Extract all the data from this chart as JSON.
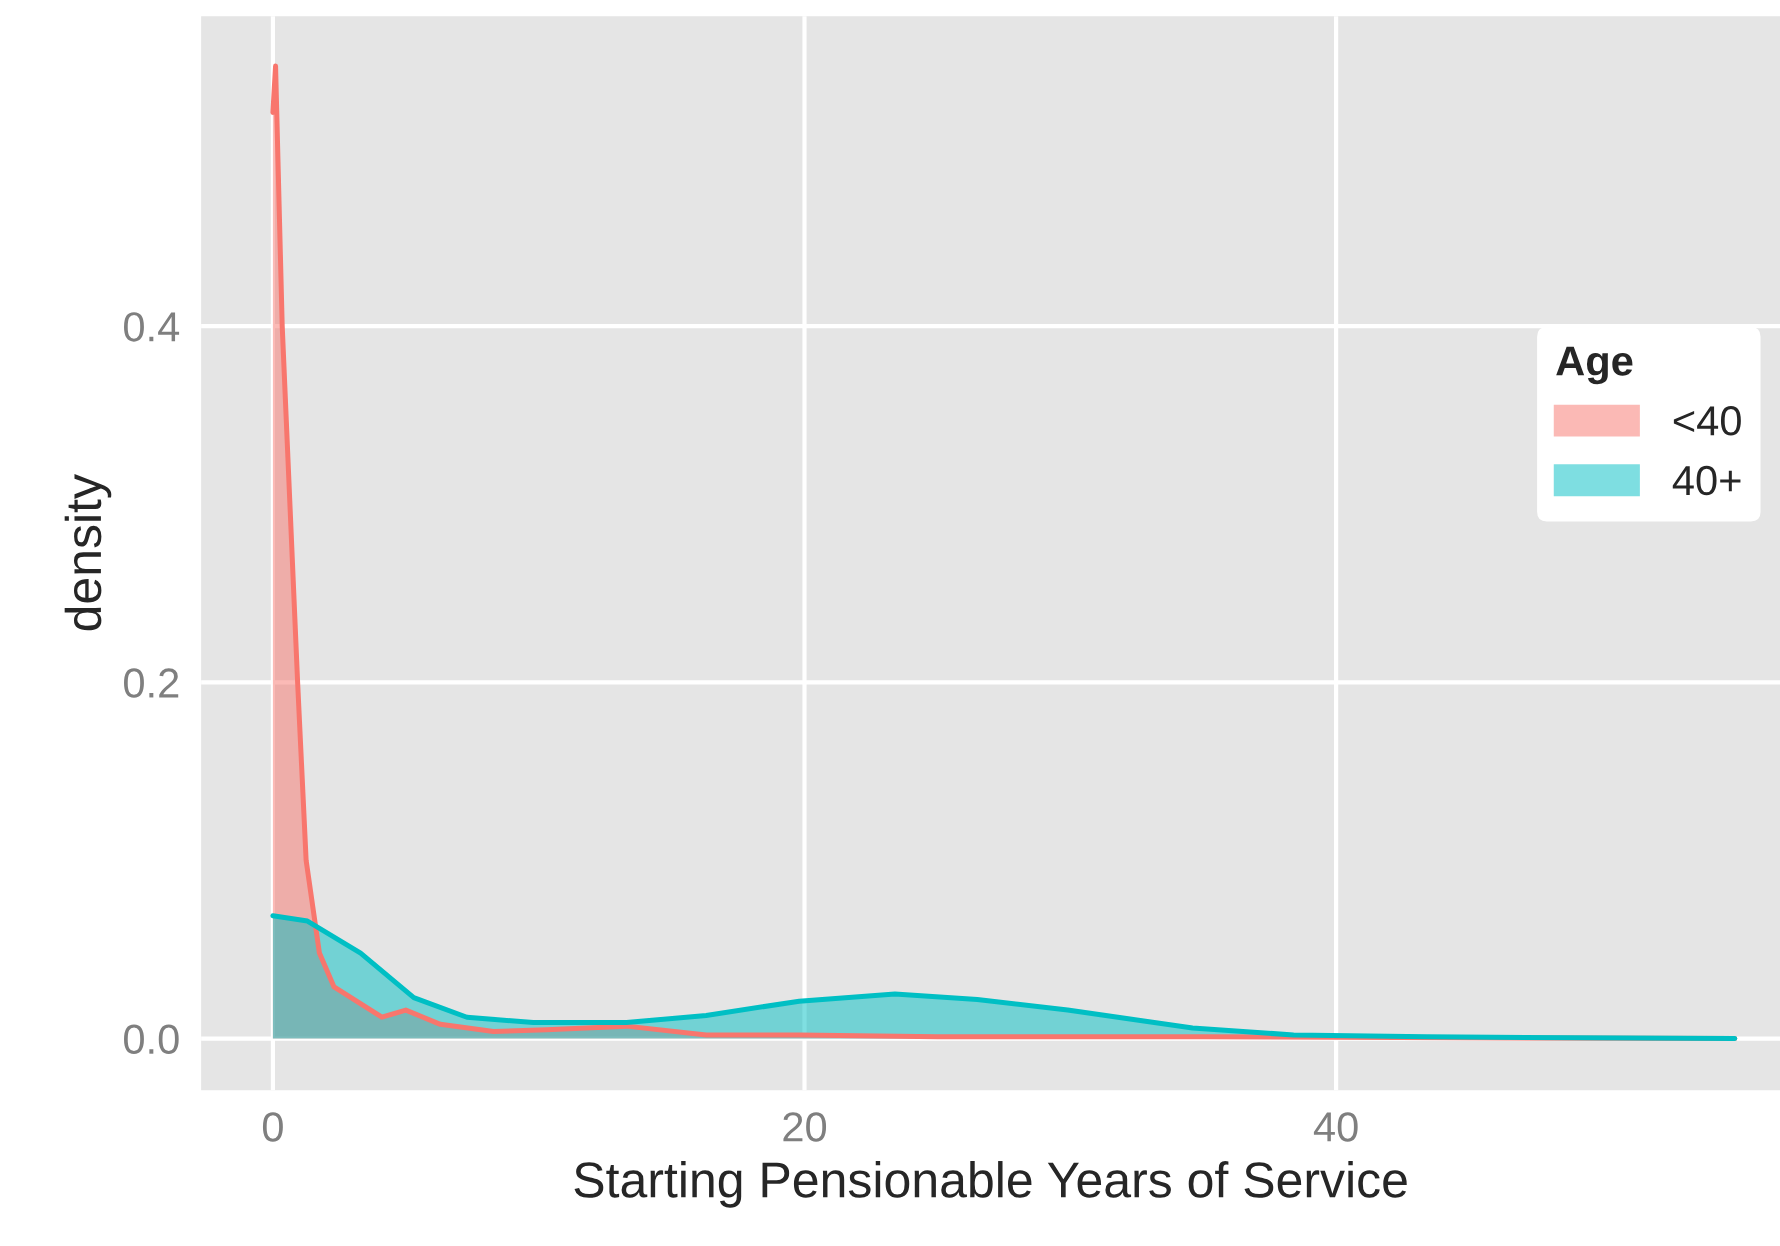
{
  "chart_data": {
    "type": "area",
    "xlabel": "Starting Pensionable Years of Service",
    "ylabel": "density",
    "legend_title": "Age",
    "legend": "right",
    "grid": true,
    "xlim": [
      -2.7,
      56.7
    ],
    "ylim": [
      -0.029,
      0.574
    ],
    "xticks": [
      0,
      20,
      40
    ],
    "yticks": [
      {
        "value": 0,
        "label": "0.0"
      },
      {
        "value": 0.2,
        "label": "0.2"
      },
      {
        "value": 0.4,
        "label": "0.4"
      }
    ],
    "series": [
      {
        "name": "<40",
        "color": "#f8766d",
        "x": [
          0,
          0.1,
          0.35,
          0.93,
          1.25,
          1.75,
          2.3,
          4.1,
          5.0,
          6.3,
          8.3,
          10.3,
          13.3,
          16.3,
          19.8,
          25,
          35,
          55
        ],
        "values": [
          0.52,
          0.546,
          0.4,
          0.2,
          0.1,
          0.048,
          0.029,
          0.012,
          0.016,
          0.008,
          0.004,
          0.005,
          0.007,
          0.002,
          0.002,
          0.001,
          0.001,
          0
        ]
      },
      {
        "name": "40+",
        "color": "#00bfc4",
        "x": [
          0,
          1.3,
          3.3,
          5.3,
          7.3,
          9.8,
          13.3,
          16.3,
          19.8,
          23.4,
          26.5,
          29.9,
          34.6,
          38.4,
          43.4,
          55
        ],
        "values": [
          0.069,
          0.066,
          0.048,
          0.023,
          0.012,
          0.009,
          0.009,
          0.013,
          0.021,
          0.025,
          0.022,
          0.016,
          0.006,
          0.002,
          0.001,
          0
        ]
      }
    ]
  }
}
